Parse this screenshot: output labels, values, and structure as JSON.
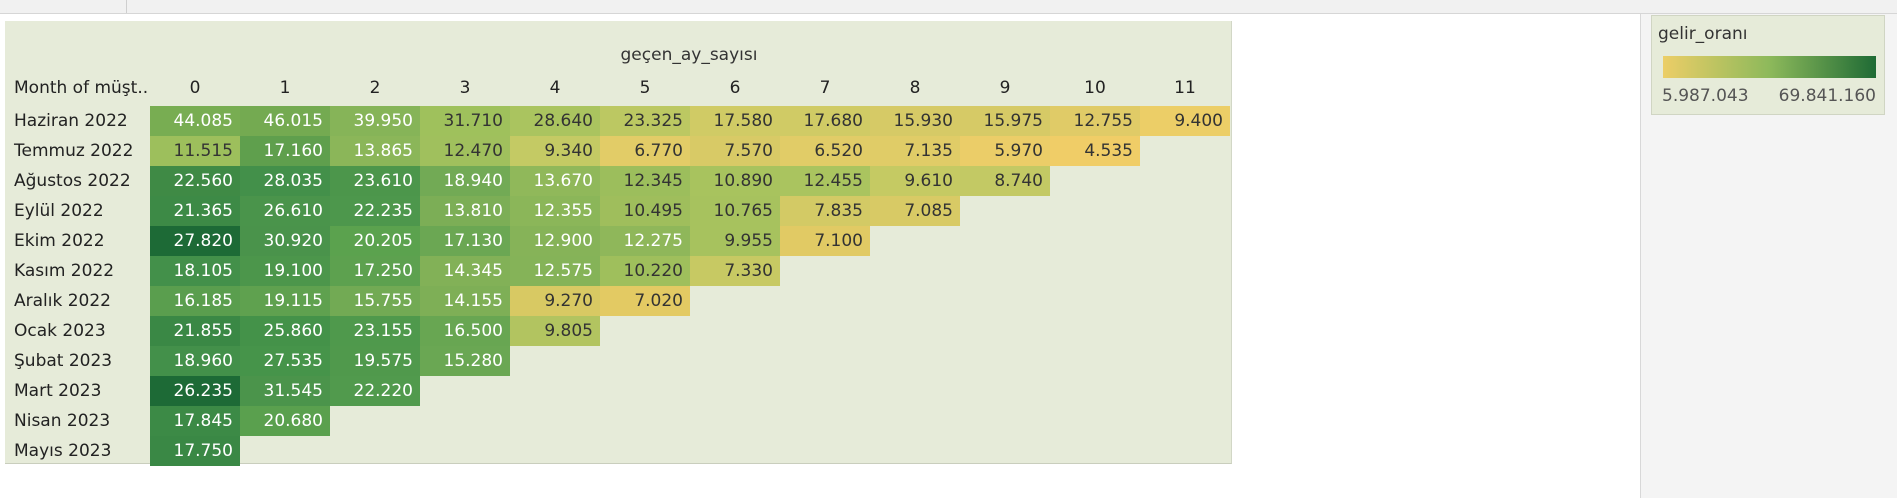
{
  "legend": {
    "title": "gelir_oranı",
    "min_label": "5.987.043",
    "max_label": "69.841.160",
    "colors": {
      "low": "#ecce67",
      "mid": "#8db95b",
      "high": "#1f6b35"
    }
  },
  "chart_data": {
    "type": "heatmap",
    "column_title": "geçen_ay_sayısı",
    "row_header": "Month of müşt..",
    "columns": [
      "0",
      "1",
      "2",
      "3",
      "4",
      "5",
      "6",
      "7",
      "8",
      "9",
      "10",
      "11"
    ],
    "rows": [
      {
        "label": "Haziran 2022",
        "values": [
          "44.085",
          "46.015",
          "39.950",
          "31.710",
          "28.640",
          "23.325",
          "17.580",
          "17.680",
          "15.930",
          "15.975",
          "12.755",
          "9.400"
        ]
      },
      {
        "label": "Temmuz 2022",
        "values": [
          "11.515",
          "17.160",
          "13.865",
          "12.470",
          "9.340",
          "6.770",
          "7.570",
          "6.520",
          "7.135",
          "5.970",
          "4.535"
        ]
      },
      {
        "label": "Ağustos 2022",
        "values": [
          "22.560",
          "28.035",
          "23.610",
          "18.940",
          "13.670",
          "12.345",
          "10.890",
          "12.455",
          "9.610",
          "8.740"
        ]
      },
      {
        "label": "Eylül 2022",
        "values": [
          "21.365",
          "26.610",
          "22.235",
          "13.810",
          "12.355",
          "10.495",
          "10.765",
          "7.835",
          "7.085"
        ]
      },
      {
        "label": "Ekim 2022",
        "values": [
          "27.820",
          "30.920",
          "20.205",
          "17.130",
          "12.900",
          "12.275",
          "9.955",
          "7.100"
        ]
      },
      {
        "label": "Kasım 2022",
        "values": [
          "18.105",
          "19.100",
          "17.250",
          "14.345",
          "12.575",
          "10.220",
          "7.330"
        ]
      },
      {
        "label": "Aralık 2022",
        "values": [
          "16.185",
          "19.115",
          "15.755",
          "14.155",
          "9.270",
          "7.020"
        ]
      },
      {
        "label": "Ocak 2023",
        "values": [
          "21.855",
          "25.860",
          "23.155",
          "16.500",
          "9.805"
        ]
      },
      {
        "label": "Şubat 2023",
        "values": [
          "18.960",
          "27.535",
          "19.575",
          "15.280"
        ]
      },
      {
        "label": "Mart 2023",
        "values": [
          "26.235",
          "31.545",
          "22.220"
        ]
      },
      {
        "label": "Nisan 2023",
        "values": [
          "17.845",
          "20.680"
        ]
      },
      {
        "label": "Mayıs 2023",
        "values": [
          "17.750"
        ]
      }
    ],
    "cell_colors": [
      [
        "#78ad52",
        "#74aa51",
        "#86b458",
        "#9fc15c",
        "#aac45f",
        "#bcc862",
        "#d0cb65",
        "#d0cb65",
        "#d6ca66",
        "#d6ca66",
        "#e0cb67",
        "#ecce67"
      ],
      [
        "#9dbf5c",
        "#5f9f4d",
        "#8bb659",
        "#a0c05d",
        "#c4ca64",
        "#e2cc67",
        "#d8ca66",
        "#e1cc67",
        "#e0cc67",
        "#ebcd68",
        "#f0cd67"
      ],
      [
        "#3f8a45",
        "#43904a",
        "#4c964b",
        "#72aa55",
        "#90b85a",
        "#9cbe5c",
        "#a8c35e",
        "#aac45f",
        "#c5ca63",
        "#c3c964"
      ],
      [
        "#3d8a46",
        "#4a944b",
        "#4d974c",
        "#7cae56",
        "#8bb659",
        "#9fbe5c",
        "#a7c25e",
        "#d3ca65",
        "#d8ca65"
      ],
      [
        "#1d6a36",
        "#4a934b",
        "#5ba24e",
        "#6ba753",
        "#86b358",
        "#8fb75a",
        "#a7c25e",
        "#e1ca64"
      ],
      [
        "#43904a",
        "#4c964b",
        "#5da14f",
        "#82b157",
        "#85b358",
        "#9fbf5c",
        "#c7c963"
      ],
      [
        "#5a9e4e",
        "#5fa14f",
        "#72aa54",
        "#7eaf56",
        "#d8c963",
        "#e3ca63"
      ],
      [
        "#3a8845",
        "#449249",
        "#4f994c",
        "#68a652",
        "#b2c460"
      ],
      [
        "#43904a",
        "#46944a",
        "#50994c",
        "#6aa753"
      ],
      [
        "#1d6a36",
        "#4b944b",
        "#519a4d"
      ],
      [
        "#3c8a46",
        "#5aa04e"
      ],
      [
        "#3a8845"
      ]
    ],
    "dark_text_threshold": "light-cells-dark-text"
  }
}
